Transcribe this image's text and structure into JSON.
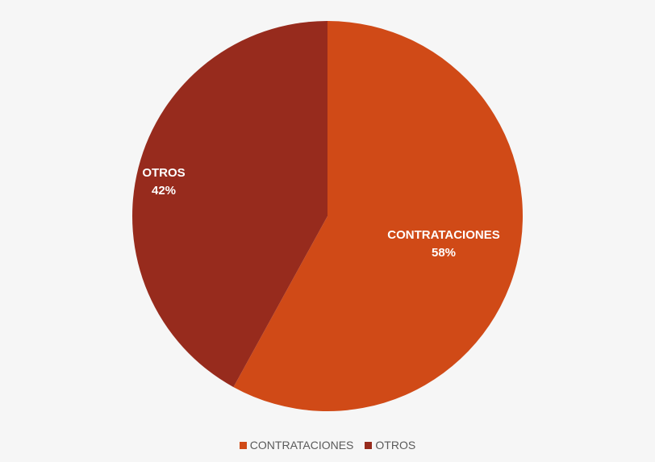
{
  "chart_data": {
    "type": "pie",
    "title": "",
    "start_angle_deg": 0,
    "direction": "clockwise",
    "legend_position": "bottom",
    "slices": [
      {
        "name": "CONTRATACIONES",
        "value": 58,
        "label": "58%",
        "color": "#d04a17"
      },
      {
        "name": "OTROS",
        "value": 42,
        "label": "42%",
        "color": "#972b1d"
      }
    ]
  }
}
